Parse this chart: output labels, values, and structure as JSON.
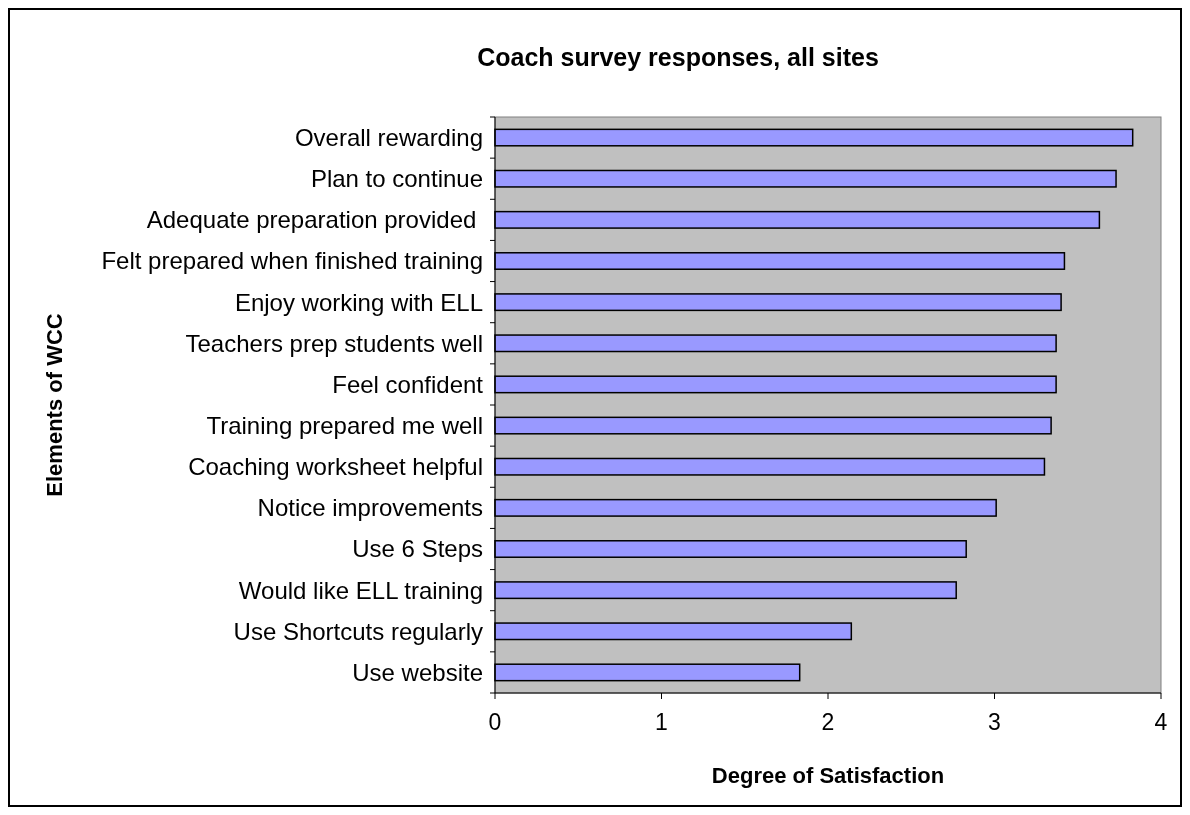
{
  "chart_data": {
    "type": "bar",
    "orientation": "horizontal",
    "title": "Coach survey responses, all sites",
    "xlabel": "Degree of Satisfaction",
    "ylabel": "Elements of WCC",
    "categories": [
      "Overall rewarding",
      "Plan to continue",
      "Adequate preparation provided ",
      "Felt prepared when finished training",
      "Enjoy working with ELL",
      "Teachers prep students well",
      "Feel confident",
      "Training prepared me well",
      "Coaching worksheet helpful",
      "Notice improvements",
      "Use 6 Steps",
      "Would like ELL training",
      "Use Shortcuts regularly",
      "Use website"
    ],
    "values": [
      3.83,
      3.73,
      3.63,
      3.42,
      3.4,
      3.37,
      3.37,
      3.34,
      3.3,
      3.01,
      2.83,
      2.77,
      2.14,
      1.83
    ],
    "color": "#9999ff",
    "xlim": [
      0,
      4
    ],
    "xticks": [
      0,
      1,
      2,
      3,
      4
    ],
    "grid": false
  }
}
